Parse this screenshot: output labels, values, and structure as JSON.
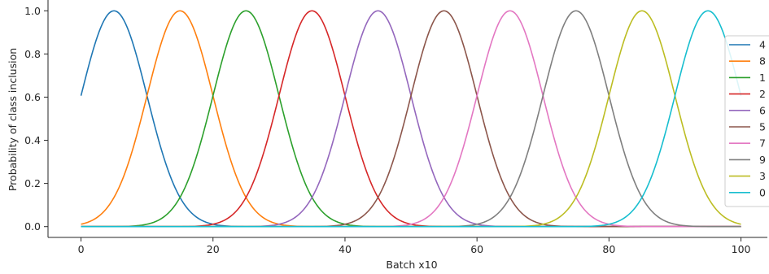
{
  "chart_data": {
    "type": "line",
    "title": "",
    "xlabel": "Batch x10",
    "ylabel": "Probability of class inclusion",
    "xlim": [
      -5,
      104
    ],
    "ylim": [
      -0.05,
      1.05
    ],
    "xticks": [
      0,
      20,
      40,
      60,
      80,
      100
    ],
    "xtick_labels": [
      "0",
      "20",
      "40",
      "60",
      "80",
      "100"
    ],
    "yticks": [
      0.0,
      0.2,
      0.4,
      0.6,
      0.8,
      1.0
    ],
    "ytick_labels": [
      "0.0",
      "0.2",
      "0.4",
      "0.6",
      "0.8",
      "1.0"
    ],
    "grid": false,
    "legend_position": "right",
    "curve_shape": "gaussian",
    "sigma": 5,
    "x_range": [
      0,
      100
    ],
    "series": [
      {
        "name": "4",
        "color": "#1f77b4",
        "peak_x": 5,
        "peak_y": 1.0
      },
      {
        "name": "8",
        "color": "#ff7f0e",
        "peak_x": 15,
        "peak_y": 1.0
      },
      {
        "name": "1",
        "color": "#2ca02c",
        "peak_x": 25,
        "peak_y": 1.0
      },
      {
        "name": "2",
        "color": "#d62728",
        "peak_x": 35,
        "peak_y": 1.0
      },
      {
        "name": "6",
        "color": "#9467bd",
        "peak_x": 45,
        "peak_y": 1.0
      },
      {
        "name": "5",
        "color": "#8c564b",
        "peak_x": 55,
        "peak_y": 1.0
      },
      {
        "name": "7",
        "color": "#e377c2",
        "peak_x": 65,
        "peak_y": 1.0
      },
      {
        "name": "9",
        "color": "#7f7f7f",
        "peak_x": 75,
        "peak_y": 1.0
      },
      {
        "name": "3",
        "color": "#bcbd22",
        "peak_x": 85,
        "peak_y": 1.0
      },
      {
        "name": "0",
        "color": "#17becf",
        "peak_x": 95,
        "peak_y": 1.0
      }
    ]
  }
}
